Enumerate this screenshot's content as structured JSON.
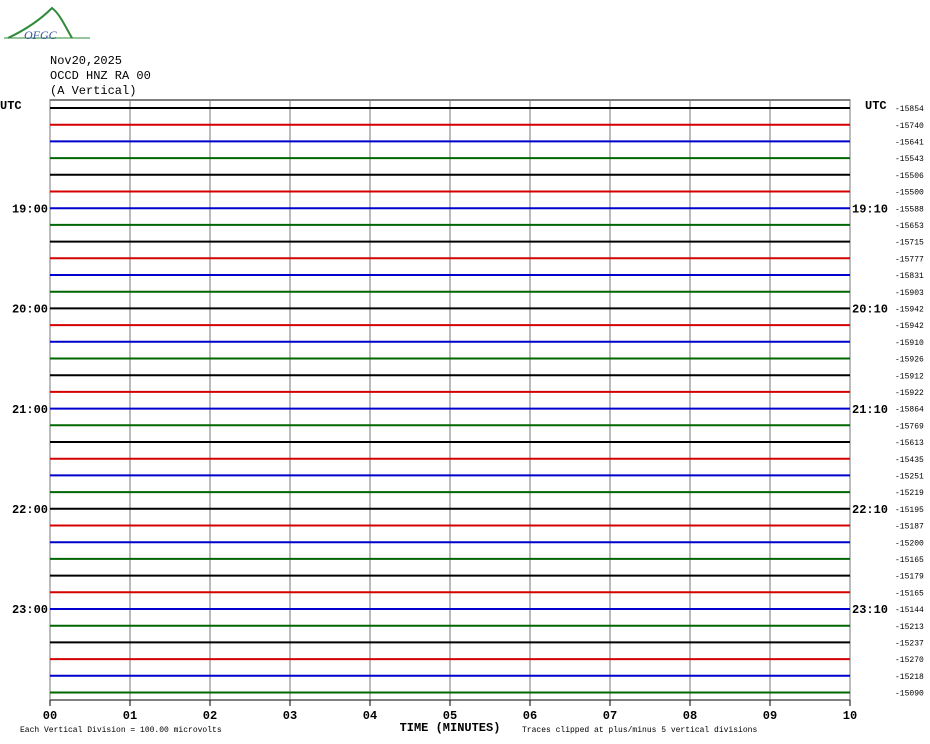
{
  "logo": "OFGC",
  "chart_data": {
    "type": "helicorder",
    "header": [
      "Nov20,2025",
      "OCCD HNZ RA 00",
      "(A Vertical)"
    ],
    "left_title": "UTC",
    "right_title": "UTC",
    "xlabel": "TIME (MINUTES)",
    "xlim": [
      0,
      10
    ],
    "xticks": [
      {
        "value": 0,
        "label": "00"
      },
      {
        "value": 1,
        "label": "01"
      },
      {
        "value": 2,
        "label": "02"
      },
      {
        "value": 3,
        "label": "03"
      },
      {
        "value": 4,
        "label": "04"
      },
      {
        "value": 5,
        "label": "05"
      },
      {
        "value": 6,
        "label": "06"
      },
      {
        "value": 7,
        "label": "07"
      },
      {
        "value": 8,
        "label": "08"
      },
      {
        "value": 9,
        "label": "09"
      },
      {
        "value": 10,
        "label": "10"
      }
    ],
    "grid": true,
    "colors": [
      "#000000",
      "#d40000",
      "#0000cc",
      "#006600"
    ],
    "left_labels": [
      null,
      null,
      null,
      null,
      null,
      null,
      "19:00",
      null,
      null,
      null,
      null,
      null,
      "20:00",
      null,
      null,
      null,
      null,
      null,
      "21:00",
      null,
      null,
      null,
      null,
      null,
      "22:00",
      null,
      null,
      null,
      null,
      null,
      "23:00",
      null,
      null,
      null,
      null,
      null
    ],
    "right_labels": [
      null,
      null,
      null,
      null,
      null,
      null,
      "19:10",
      null,
      null,
      null,
      null,
      null,
      "20:10",
      null,
      null,
      null,
      null,
      null,
      "21:10",
      null,
      null,
      null,
      null,
      null,
      "22:10",
      null,
      null,
      null,
      null,
      null,
      "23:10",
      null,
      null,
      null,
      null,
      null
    ],
    "offsets": [
      -15854,
      -15740,
      -15641,
      -15543,
      -15506,
      -15500,
      -15588,
      -15653,
      -15715,
      -15777,
      -15831,
      -15903,
      -15942,
      -15942,
      -15910,
      -15926,
      -15912,
      -15922,
      -15864,
      -15769,
      -15613,
      -15435,
      -15251,
      -15219,
      -15195,
      -15187,
      -15200,
      -15165,
      -15179,
      -15165,
      -15144,
      -15213,
      -15237,
      -15270,
      -15218,
      -15090
    ],
    "notes": [
      "Each Vertical Division =  100.00 microvolts",
      "Traces clipped at plus/minus 5 vertical divisions"
    ]
  }
}
